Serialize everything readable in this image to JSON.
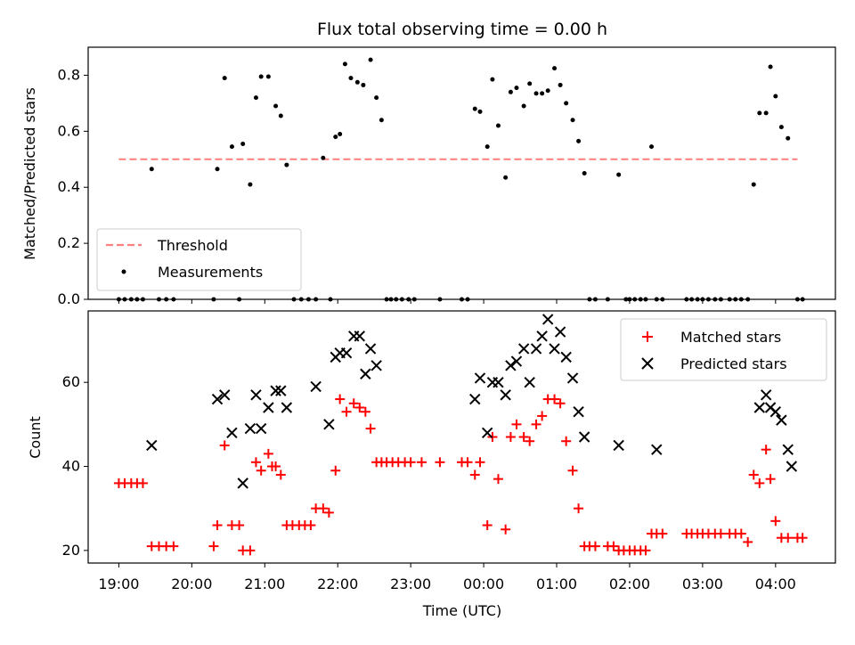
{
  "chart_data": [
    {
      "type": "scatter",
      "title": "Flux total observing time = 0.00 h",
      "xlabel": "",
      "ylabel": "Matched/Predicted stars",
      "ylim": [
        0,
        0.9
      ],
      "yticks": [
        "0.0",
        "0.2",
        "0.4",
        "0.6",
        "0.8"
      ],
      "xlim_hours": [
        18.58,
        28.82
      ],
      "grid": false,
      "legend_placement": "lower-left",
      "threshold": {
        "name": "Threshold",
        "value": 0.5,
        "x_range": [
          19.0,
          28.3
        ],
        "color": "#ff7f7f"
      },
      "series": [
        {
          "name": "Measurements",
          "color": "#000000",
          "x": [
            19.0,
            19.08,
            19.17,
            19.25,
            19.33,
            19.45,
            19.55,
            19.65,
            19.75,
            20.3,
            20.35,
            20.45,
            20.55,
            20.65,
            20.7,
            20.8,
            20.88,
            20.95,
            21.05,
            21.15,
            21.22,
            21.3,
            21.4,
            21.5,
            21.6,
            21.7,
            21.8,
            21.9,
            21.97,
            22.03,
            22.1,
            22.18,
            22.27,
            22.35,
            22.45,
            22.53,
            22.6,
            22.67,
            22.73,
            22.8,
            22.88,
            22.97,
            23.05,
            23.4,
            23.7,
            23.78,
            23.88,
            23.95,
            24.05,
            24.12,
            24.2,
            24.3,
            24.37,
            24.45,
            24.55,
            24.63,
            24.72,
            24.8,
            24.88,
            24.97,
            25.05,
            25.13,
            25.22,
            25.3,
            25.38,
            25.45,
            25.53,
            25.7,
            25.85,
            25.95,
            26.0,
            26.07,
            26.15,
            26.22,
            26.3,
            26.37,
            26.45,
            26.78,
            26.85,
            26.93,
            27.0,
            27.08,
            27.17,
            27.25,
            27.37,
            27.45,
            27.53,
            27.62,
            27.7,
            27.78,
            27.87,
            27.93,
            28.0,
            28.08,
            28.17,
            28.3,
            28.37
          ],
          "y": [
            0,
            0,
            0,
            0,
            0,
            0.465,
            0,
            0,
            0,
            0,
            0.465,
            0.79,
            0.545,
            0,
            0.555,
            0.41,
            0.72,
            0.795,
            0.795,
            0.69,
            0.655,
            0.48,
            0,
            0,
            0,
            0,
            0.505,
            0,
            0.58,
            0.59,
            0.84,
            0.79,
            0.775,
            0.765,
            0.855,
            0.72,
            0.64,
            0,
            0,
            0,
            0,
            0,
            0,
            0,
            0,
            0,
            0.68,
            0.67,
            0.545,
            0.785,
            0.62,
            0.435,
            0.74,
            0.755,
            0.69,
            0.77,
            0.735,
            0.735,
            0.745,
            0.825,
            0.765,
            0.7,
            0.64,
            0.565,
            0.45,
            0,
            0,
            0,
            0.445,
            0,
            0,
            0,
            0,
            0,
            0.545,
            0,
            0,
            0,
            0,
            0,
            0,
            0,
            0,
            0,
            0,
            0,
            0,
            0,
            0.41,
            0.665,
            0.665,
            0.83,
            0.725,
            0.615,
            0.575,
            0,
            0
          ]
        }
      ]
    },
    {
      "type": "scatter",
      "title": "",
      "xlabel": "Time (UTC)",
      "ylabel": "Count",
      "ylim": [
        17,
        77
      ],
      "yticks": [
        "20",
        "40",
        "60"
      ],
      "xticks": [
        "19:00",
        "20:00",
        "21:00",
        "22:00",
        "23:00",
        "00:00",
        "01:00",
        "02:00",
        "03:00",
        "04:00"
      ],
      "xlim_hours": [
        18.58,
        28.82
      ],
      "grid": false,
      "legend_placement": "upper-right",
      "series": [
        {
          "name": "Matched stars",
          "marker": "plus",
          "color": "#ff0000",
          "x": [
            19.0,
            19.08,
            19.17,
            19.25,
            19.33,
            19.45,
            19.55,
            19.65,
            19.75,
            20.3,
            20.35,
            20.45,
            20.55,
            20.65,
            20.7,
            20.8,
            20.88,
            20.95,
            21.05,
            21.1,
            21.15,
            21.22,
            21.3,
            21.38,
            21.47,
            21.55,
            21.63,
            21.7,
            21.8,
            21.88,
            21.97,
            22.03,
            22.12,
            22.22,
            22.3,
            22.38,
            22.45,
            22.53,
            22.6,
            22.67,
            22.75,
            22.83,
            22.92,
            23.0,
            23.15,
            23.4,
            23.7,
            23.78,
            23.88,
            23.95,
            24.05,
            24.12,
            24.2,
            24.3,
            24.37,
            24.45,
            24.55,
            24.63,
            24.72,
            24.8,
            24.88,
            24.97,
            25.05,
            25.13,
            25.22,
            25.3,
            25.38,
            25.45,
            25.53,
            25.7,
            25.78,
            25.85,
            25.92,
            26.0,
            26.07,
            26.15,
            26.22,
            26.3,
            26.37,
            26.45,
            26.78,
            26.85,
            26.93,
            27.0,
            27.08,
            27.17,
            27.25,
            27.37,
            27.45,
            27.53,
            27.62,
            27.7,
            27.78,
            27.87,
            27.93,
            28.0,
            28.08,
            28.17,
            28.3,
            28.37
          ],
          "y": [
            36,
            36,
            36,
            36,
            36,
            21,
            21,
            21,
            21,
            21,
            26,
            45,
            26,
            26,
            20,
            20,
            41,
            39,
            43,
            40,
            40,
            38,
            26,
            26,
            26,
            26,
            26,
            30,
            30,
            29,
            39,
            56,
            53,
            55,
            54,
            53,
            49,
            41,
            41,
            41,
            41,
            41,
            41,
            41,
            41,
            41,
            41,
            41,
            38,
            41,
            26,
            47,
            37,
            25,
            47,
            50,
            47,
            46,
            50,
            52,
            56,
            56,
            55,
            46,
            39,
            30,
            21,
            21,
            21,
            21,
            21,
            20,
            20,
            20,
            20,
            20,
            20,
            24,
            24,
            24,
            24,
            24,
            24,
            24,
            24,
            24,
            24,
            24,
            24,
            24,
            22,
            38,
            36,
            44,
            37,
            27,
            23,
            23,
            23,
            23
          ]
        },
        {
          "name": "Predicted stars",
          "marker": "x",
          "color": "#000000",
          "x": [
            19.45,
            20.35,
            20.45,
            20.55,
            20.7,
            20.8,
            20.88,
            20.95,
            21.05,
            21.15,
            21.22,
            21.3,
            21.7,
            21.88,
            21.97,
            22.03,
            22.12,
            22.22,
            22.3,
            22.38,
            22.45,
            22.53,
            23.88,
            23.95,
            24.05,
            24.12,
            24.2,
            24.3,
            24.37,
            24.45,
            24.55,
            24.63,
            24.72,
            24.8,
            24.88,
            24.97,
            25.05,
            25.13,
            25.22,
            25.3,
            25.38,
            25.85,
            26.37,
            27.78,
            27.87,
            27.93,
            28.0,
            28.08,
            28.17,
            28.22
          ],
          "y": [
            45,
            56,
            57,
            48,
            36,
            49,
            57,
            49,
            54,
            58,
            58,
            54,
            59,
            50,
            66,
            67,
            67,
            71,
            71,
            62,
            68,
            64,
            56,
            61,
            48,
            60,
            60,
            57,
            64,
            65,
            68,
            60,
            68,
            71,
            75,
            68,
            72,
            66,
            61,
            53,
            47,
            45,
            44,
            54,
            57,
            54,
            53,
            51,
            44,
            40
          ]
        }
      ]
    }
  ]
}
